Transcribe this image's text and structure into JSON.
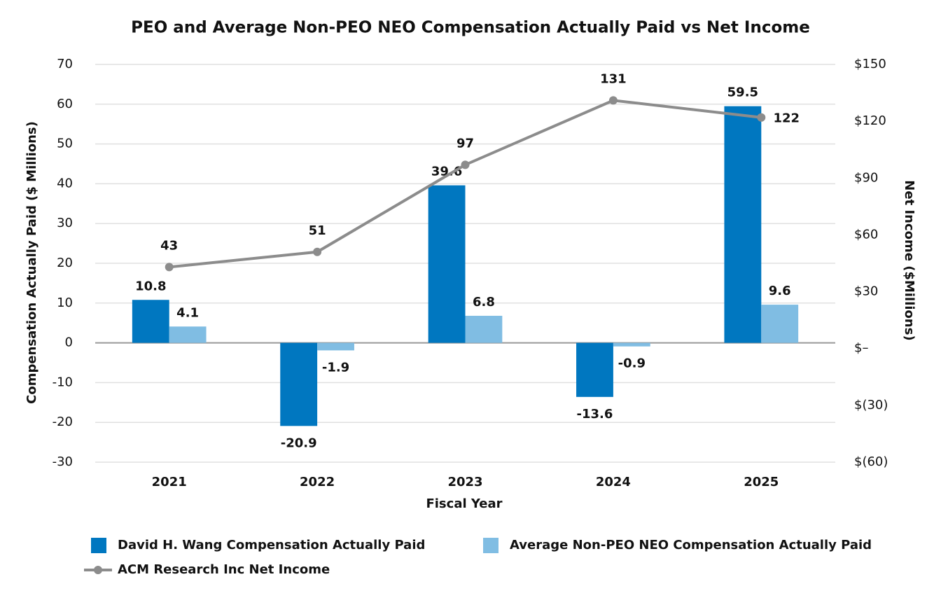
{
  "chart_data": {
    "type": "bar",
    "title": "PEO and Average Non-PEO NEO Compensation Actually Paid vs Net Income",
    "x_label": "Fiscal Year",
    "y_label": "Compensation Actually Paid ($ Millions)",
    "y2_label": "Net Income ($Millions)",
    "categories": [
      "2021",
      "2022",
      "2023",
      "2024",
      "2025"
    ],
    "series": [
      {
        "name": "David H. Wang Compensation Actually Paid",
        "type": "bar",
        "color": "#0077c0",
        "values": [
          10.8,
          -20.9,
          39.6,
          -13.6,
          59.5
        ]
      },
      {
        "name": "Average Non-PEO NEO Compensation Actually Paid",
        "type": "bar",
        "color": "#80bde3",
        "values": [
          4.1,
          -1.9,
          6.8,
          -0.9,
          9.6
        ]
      },
      {
        "name": "ACM Research Inc Net Income",
        "type": "line",
        "axis": "y2",
        "color": "#8c8c8c",
        "values": [
          43,
          51,
          97,
          131,
          122
        ]
      }
    ],
    "ylim": [
      -30,
      70
    ],
    "yticks": [
      -30,
      -20,
      -10,
      0,
      10,
      20,
      30,
      40,
      50,
      60,
      70
    ],
    "y2lim": [
      -60,
      150
    ],
    "y2ticks": [
      {
        "value": -60,
        "label": "$(60)"
      },
      {
        "value": -30,
        "label": "$(30)"
      },
      {
        "value": 0,
        "label": "$–"
      },
      {
        "value": 30,
        "label": "$30"
      },
      {
        "value": 60,
        "label": "$60"
      },
      {
        "value": 90,
        "label": "$90"
      },
      {
        "value": 120,
        "label": "$120"
      },
      {
        "value": 150,
        "label": "$150"
      }
    ],
    "grid": true
  }
}
